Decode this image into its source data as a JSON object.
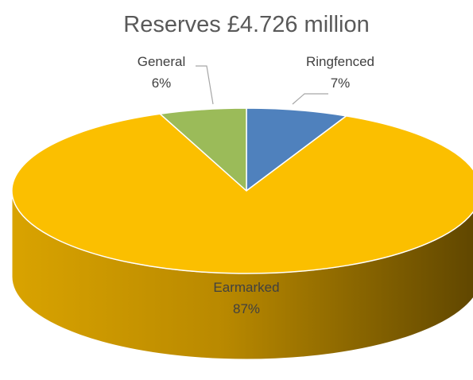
{
  "chart_data": {
    "type": "pie",
    "title": "Reserves £4.726 million",
    "slices": [
      {
        "label": "Ringfenced",
        "value": 7,
        "value_label": "7%",
        "color": "#4f81bd"
      },
      {
        "label": "Earmarked",
        "value": 87,
        "value_label": "87%",
        "color": "#fbbf00"
      },
      {
        "label": "General",
        "value": 6,
        "value_label": "6%",
        "color": "#9bbb59"
      }
    ],
    "style": "3d-tilted",
    "legend": "none"
  }
}
